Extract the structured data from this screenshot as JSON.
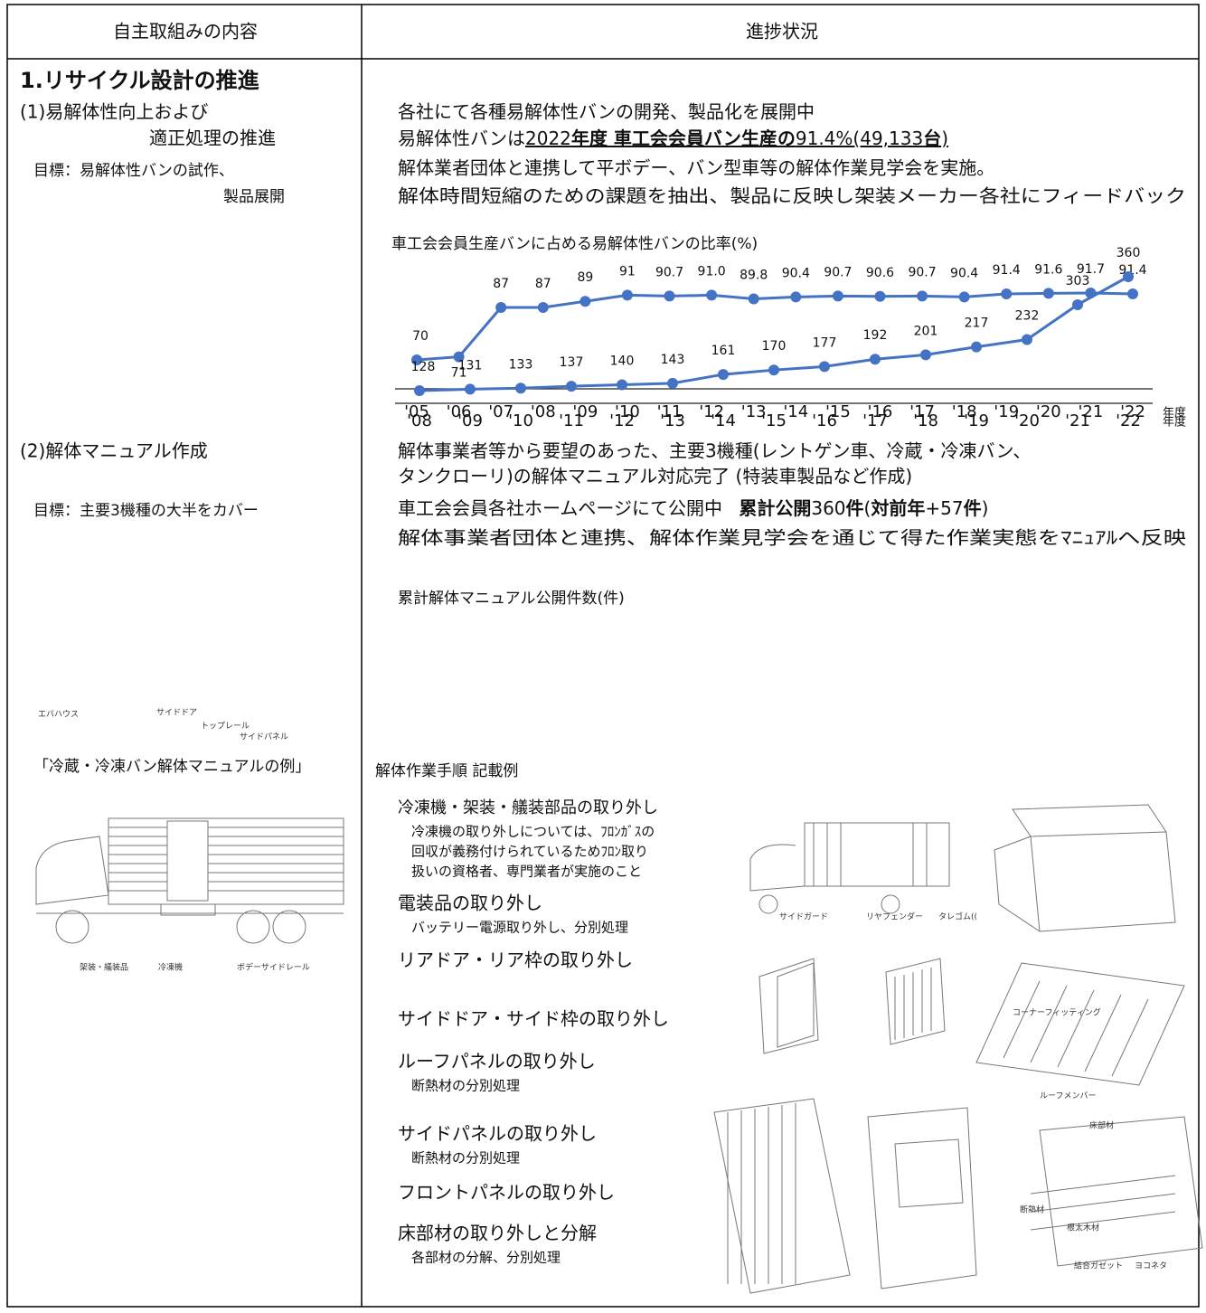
{
  "header": {
    "left": "自主取組みの内容",
    "right": "進捗状況"
  },
  "section_title": "1.リサイクル設計の推進",
  "item_1": {
    "heading": [
      "(1)易解体性向上および",
      "適正処理の推進"
    ],
    "goal": [
      "目標：易解体性バンの試作、",
      "製品展開"
    ],
    "lines": [
      "各社にて各種易解体性バンの開発、製品化を展開中",
      "解体業者団体と連携して平ボデー、バン型車等の解体作業見学会を実施。",
      "解体時間短縮のための課題を抽出、製品に反映し架装メーカー各社にフィードバック"
    ],
    "highlight": [
      "易解体性バンは",
      "2022",
      "年度 車工会会員バン生産の",
      "91.4%(49,133",
      "台",
      ")"
    ]
  },
  "item_2": {
    "heading": "(2)解体マニュアル作成",
    "goal": "目標：主要3機種の大半をカバー",
    "lines": [
      "解体事業者等から要望のあった、主要3機種(レントゲン車、冷蔵・冷凍バン、",
      "タンクローリ)の解体マニュアル対応完了 (特装車製品など作成)",
      "解体事業者団体と連携、解体作業見学会を通じて得た作業実態をﾏﾆｭｱﾙへ反映"
    ],
    "highlight": [
      "車工会会員各社ホームページにて公開中 ",
      "累計公開",
      "360",
      "件",
      "(",
      "対前年",
      "+57",
      "件",
      ")"
    ]
  },
  "item_3": {
    "example_title": "「冷蔵・冷凍バン解体マニュアルの例」",
    "procedure_title": "解体作業手順 記載例",
    "steps": [
      {
        "title": "冷凍機・架装・艤装部品の取り外し",
        "notes": [
          "冷凍機の取り外しについては、ﾌﾛﾝｶﾞｽの",
          "回収が義務付けられているためﾌﾛﾝ取り",
          "扱いの資格者、専門業者が実施のこと"
        ]
      },
      {
        "title": "電装品の取り外し",
        "notes": [
          "バッテリー電源取り外し、分別処理"
        ]
      },
      {
        "title": "リアドア・リア枠の取り外し",
        "notes": []
      },
      {
        "title": "サイドドア・サイド枠の取り外し",
        "notes": []
      },
      {
        "title": "ルーフパネルの取り外し",
        "notes": [
          "断熱材の分別処理"
        ]
      },
      {
        "title": "サイドパネルの取り外し",
        "notes": [
          "断熱材の分別処理"
        ]
      },
      {
        "title": "フロントパネルの取り外し",
        "notes": []
      },
      {
        "title": "床部材の取り外しと分解",
        "notes": [
          "各部材の分解、分別処理"
        ]
      }
    ],
    "truck_labels": [
      "エバハウス",
      "サイドドア",
      "トップレール",
      "サイドパネル",
      "架装・艤装品",
      "冷凍機",
      "ボデーサイドレール"
    ],
    "detail_labels": [
      "サイドガード",
      "リヤフェンダー",
      "タレゴム((",
      "ルーフメンバー",
      "コーナーフィッティング",
      "床部材",
      "断熱材",
      "根太木材",
      "結合ガゼット",
      "ヨコネタ"
    ]
  },
  "chart_data": [
    {
      "type": "line",
      "title": "車工会会員生産バンに占める易解体性バンの比率(%)",
      "x_label": "年度",
      "color": "#4472c4",
      "categories": [
        "'05",
        "'06",
        "'07",
        "'08",
        "'09",
        "'10",
        "'11",
        "'12",
        "'13",
        "'14",
        "'15",
        "'16",
        "'17",
        "'18",
        "'19",
        "'20",
        "'21",
        "'22"
      ],
      "values": [
        70,
        71,
        87,
        87,
        89,
        91,
        90.7,
        91.0,
        89.8,
        90.4,
        90.7,
        90.6,
        90.7,
        90.4,
        91.4,
        91.6,
        91.7,
        91.4
      ],
      "value_labels": [
        "70",
        "71",
        "87",
        "87",
        "89",
        "91",
        "90.7",
        "91.0",
        "89.8",
        "90.4",
        "90.7",
        "90.6",
        "90.7",
        "90.4",
        "91.4",
        "91.6",
        "91.7",
        "91.4"
      ]
    },
    {
      "type": "line",
      "title": "累計解体マニュアル公開件数(件)",
      "x_label": "年度",
      "color": "#4472c4",
      "categories": [
        "'08",
        "'09",
        "'10",
        "'11",
        "'12",
        "'13",
        "'14",
        "'15",
        "'16",
        "'17",
        "'18",
        "'19",
        "'20",
        "'21",
        "'22"
      ],
      "values": [
        128,
        131,
        133,
        137,
        140,
        143,
        161,
        170,
        177,
        192,
        201,
        217,
        232,
        303,
        360
      ]
    }
  ]
}
